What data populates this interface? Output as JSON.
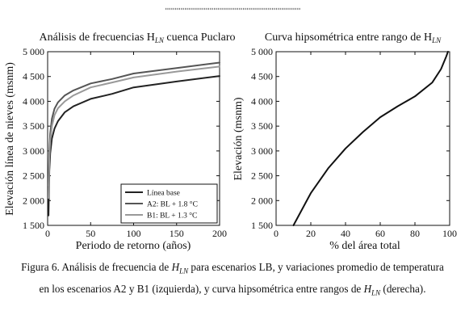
{
  "chart_data": [
    {
      "type": "line",
      "title": "Análisis de frecuencias H",
      "title_sub": "LN",
      "title_suffix": " cuenca Puclaro",
      "xlabel": "Periodo de retorno (años)",
      "ylabel": "Elevación línea de nieves (msnm)",
      "xlim": [
        0,
        200
      ],
      "ylim": [
        1500,
        5000
      ],
      "x_ticks": [
        "0",
        "50",
        "100",
        "150",
        "200"
      ],
      "y_ticks": [
        "1 500",
        "2 000",
        "2 500",
        "3 000",
        "3 500",
        "4 000",
        "4 500",
        "5 000"
      ],
      "grid": false,
      "legend_position": "bottom-right",
      "series": [
        {
          "name": "Línea base",
          "color": "#222222",
          "x": [
            1,
            2,
            3,
            5,
            8,
            12,
            20,
            30,
            50,
            75,
            100,
            150,
            200
          ],
          "y": [
            1700,
            2600,
            2950,
            3250,
            3450,
            3600,
            3780,
            3900,
            4050,
            4150,
            4280,
            4400,
            4510
          ]
        },
        {
          "name": "A2: BL + 1.8 °C",
          "color": "#555555",
          "x": [
            1,
            2,
            3,
            5,
            8,
            12,
            20,
            30,
            50,
            75,
            100,
            150,
            200
          ],
          "y": [
            2300,
            3000,
            3350,
            3650,
            3850,
            3980,
            4120,
            4220,
            4360,
            4450,
            4560,
            4670,
            4780
          ]
        },
        {
          "name": "B1: BL + 1.3 °C",
          "color": "#999999",
          "x": [
            1,
            2,
            3,
            5,
            8,
            12,
            20,
            30,
            50,
            75,
            100,
            150,
            200
          ],
          "y": [
            2050,
            2850,
            3200,
            3500,
            3720,
            3860,
            4000,
            4120,
            4280,
            4380,
            4480,
            4600,
            4700
          ]
        }
      ]
    },
    {
      "type": "line",
      "title": "Curva hipsométrica entre rango de H",
      "title_sub": "LN",
      "xlabel": "% del área total",
      "ylabel": "Elevación  (msnm)",
      "xlim": [
        0,
        100
      ],
      "ylim": [
        1500,
        5000
      ],
      "x_ticks": [
        "0",
        "20",
        "40",
        "60",
        "80",
        "100"
      ],
      "y_ticks": [
        "1 500",
        "2 000",
        "2 500",
        "3 000",
        "3 500",
        "4 000",
        "4 500",
        "5 000"
      ],
      "grid": false,
      "series": [
        {
          "color": "#111111",
          "x": [
            10,
            20,
            30,
            40,
            50,
            60,
            70,
            80,
            90,
            95,
            98,
            99
          ],
          "y": [
            1500,
            2150,
            2650,
            3050,
            3380,
            3680,
            3900,
            4100,
            4380,
            4650,
            4900,
            5000
          ]
        }
      ]
    }
  ],
  "caption": {
    "line1_a": "Figura 6. Análisis de frecuencia de ",
    "line1_b": " para escenarios LB, y variaciones promedio de temperatura",
    "line2_a": "en los escenarios A2 y B1 (izquierda), y curva hipsométrica entre rangos de ",
    "line2_b": " (derecha).",
    "symbol": "H",
    "symbol_sub": "LN"
  }
}
